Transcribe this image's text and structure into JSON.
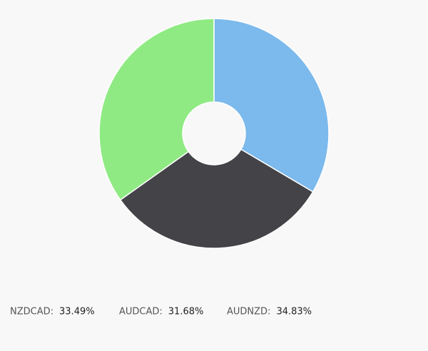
{
  "chart_data": {
    "type": "donut",
    "categories": [
      "NZDCAD:",
      "AUDCAD:",
      "AUDNZD:"
    ],
    "values": [
      33.49,
      31.68,
      34.83
    ],
    "value_labels": [
      "33.49%",
      "31.68%",
      "34.83%"
    ],
    "colors": [
      "#7cb9ec",
      "#434348",
      "#90ea84"
    ]
  }
}
